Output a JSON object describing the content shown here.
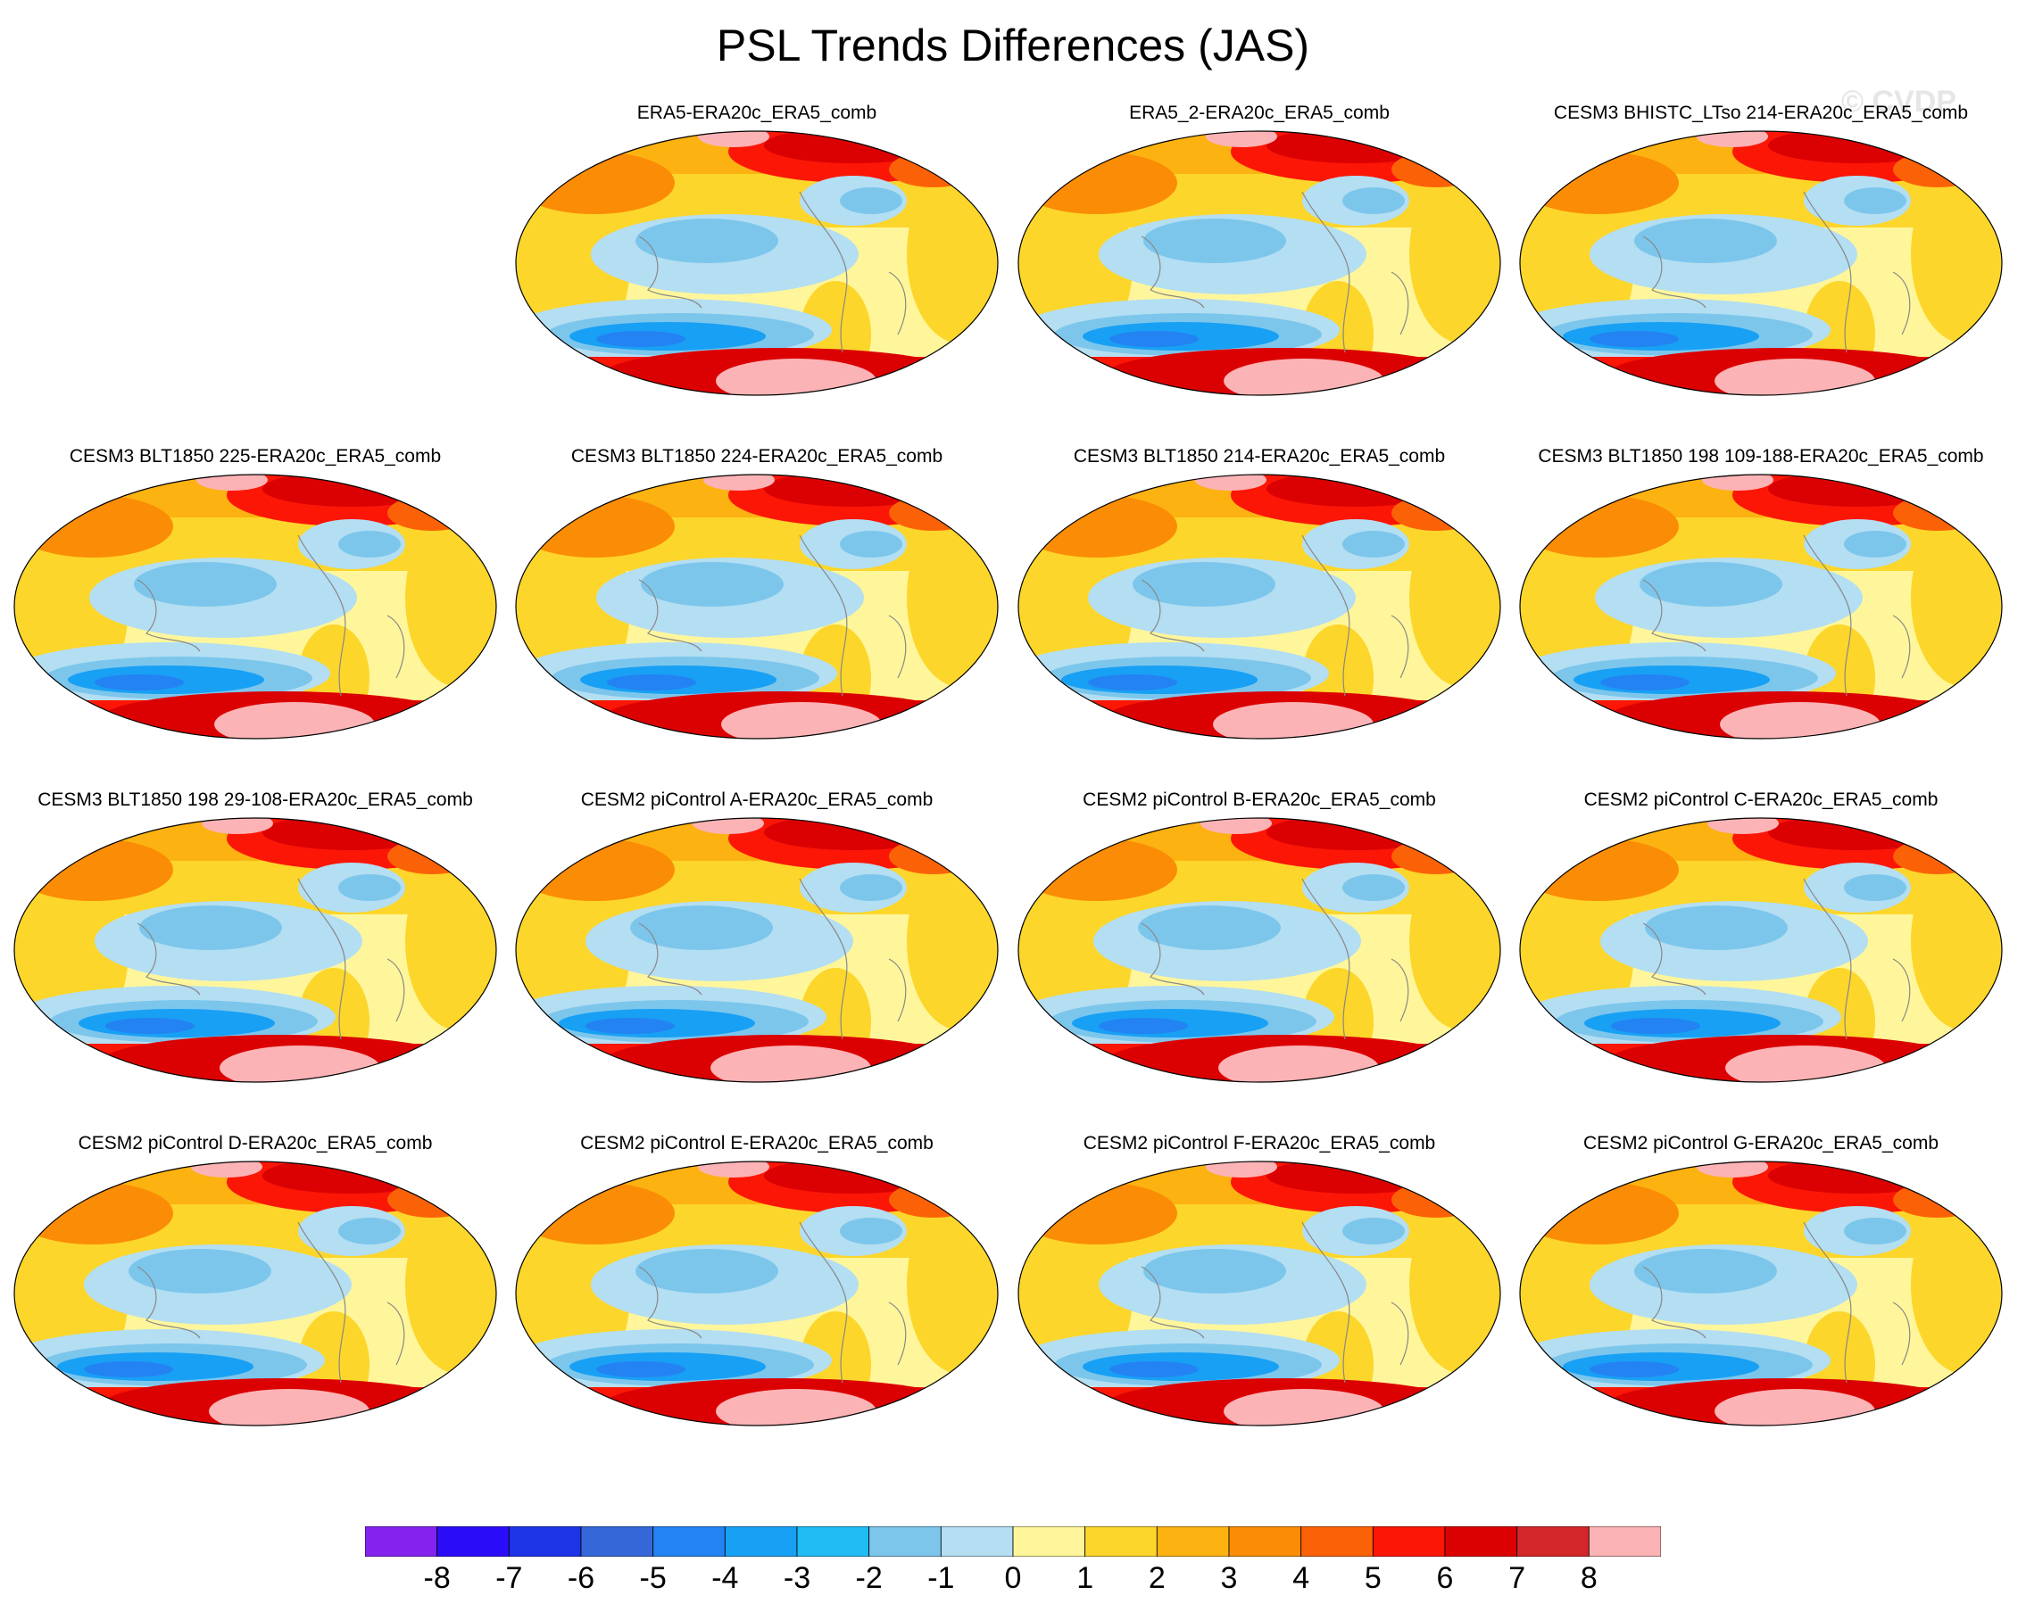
{
  "title": "PSL Trends Differences (JAS)",
  "watermark": "© CVDP",
  "panels": [
    {
      "label": "ERA5-ERA20c_ERA5_comb",
      "variant": 1
    },
    {
      "label": "ERA5_2-ERA20c_ERA5_comb",
      "variant": 2
    },
    {
      "label": "CESM3 BHISTC_LTso 214-ERA20c_ERA5_comb",
      "variant": 3
    },
    {
      "label": "CESM3 BLT1850 225-ERA20c_ERA5_comb",
      "variant": 4
    },
    {
      "label": "CESM3 BLT1850 224-ERA20c_ERA5_comb",
      "variant": 5
    },
    {
      "label": "CESM3 BLT1850 214-ERA20c_ERA5_comb",
      "variant": 6
    },
    {
      "label": "CESM3 BLT1850 198 109-188-ERA20c_ERA5_comb",
      "variant": 7
    },
    {
      "label": "CESM3 BLT1850 198 29-108-ERA20c_ERA5_comb",
      "variant": 8
    },
    {
      "label": "CESM2 piControl A-ERA20c_ERA5_comb",
      "variant": 9
    },
    {
      "label": "CESM2 piControl B-ERA20c_ERA5_comb",
      "variant": 10
    },
    {
      "label": "CESM2 piControl C-ERA20c_ERA5_comb",
      "variant": 11
    },
    {
      "label": "CESM2 piControl D-ERA20c_ERA5_comb",
      "variant": 12
    },
    {
      "label": "CESM2 piControl E-ERA20c_ERA5_comb",
      "variant": 13
    },
    {
      "label": "CESM2 piControl F-ERA20c_ERA5_comb",
      "variant": 14
    },
    {
      "label": "CESM2 piControl G-ERA20c_ERA5_comb",
      "variant": 15
    }
  ],
  "colorbar": {
    "colors": [
      "#8422ee",
      "#2a0cf8",
      "#1c34e6",
      "#3567d9",
      "#2383f2",
      "#18a0f4",
      "#20bdf5",
      "#7cc6ec",
      "#b4def2",
      "#fff69b",
      "#fcd62a",
      "#fcb211",
      "#fb8c05",
      "#fb6207",
      "#fb1606",
      "#db0103",
      "#d3262a",
      "#fcb3b5"
    ],
    "ticks": [
      "-8",
      "-7",
      "-6",
      "-5",
      "-4",
      "-3",
      "-2",
      "-1",
      "0",
      "1",
      "2",
      "3",
      "4",
      "5",
      "6",
      "7",
      "8"
    ]
  }
}
